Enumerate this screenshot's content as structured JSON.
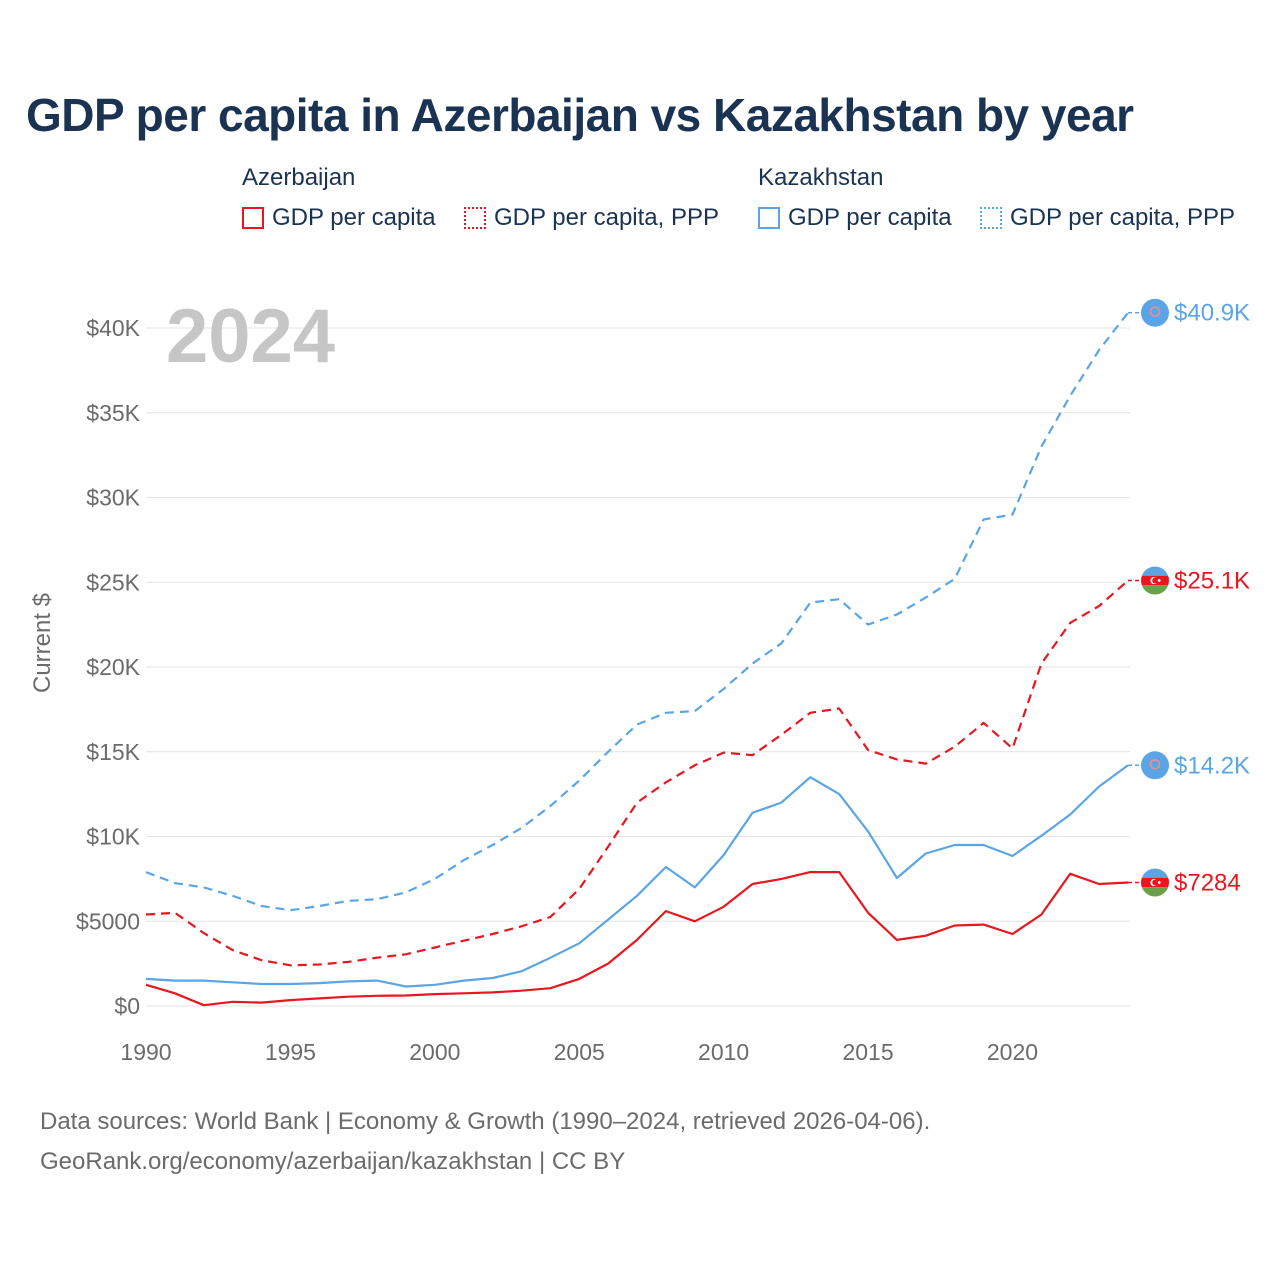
{
  "title": "GDP per capita in Azerbaijan vs Kazakhstan by year",
  "legend": {
    "groups": [
      {
        "title": "Azerbaijan",
        "items": [
          "GDP per capita",
          "GDP per capita, PPP"
        ]
      },
      {
        "title": "Kazakhstan",
        "items": [
          "GDP per capita",
          "GDP per capita, PPP"
        ]
      }
    ]
  },
  "year_watermark": "2024",
  "footer": {
    "line1": "Data sources: World Bank | Economy & Growth (1990–2024, retrieved 2026-04-06).",
    "line2": "GeoRank.org/economy/azerbaijan/kazakhstan | CC BY"
  },
  "colors": {
    "azerbaijan": "#e8171f",
    "kazakhstan": "#5ba5e6",
    "grid": "#e3e3e3",
    "axis_text": "#6b6b6b"
  },
  "chart_data": {
    "type": "line",
    "title": "GDP per capita in Azerbaijan vs Kazakhstan by year",
    "xlabel": "",
    "ylabel": "Current $",
    "xlim": [
      1990,
      2024
    ],
    "ylim": [
      0,
      42000
    ],
    "x_ticks": [
      1990,
      1995,
      2000,
      2005,
      2010,
      2015,
      2020
    ],
    "x_tick_labels": [
      "1990",
      "1995",
      "2000",
      "2005",
      "2010",
      "2015",
      "2020"
    ],
    "y_ticks": [
      0,
      5000,
      10000,
      15000,
      20000,
      25000,
      30000,
      35000,
      40000
    ],
    "y_tick_labels": [
      "$0",
      "$5000",
      "$10K",
      "$15K",
      "$20K",
      "$25K",
      "$30K",
      "$35K",
      "$40K"
    ],
    "x": [
      1990,
      1991,
      1992,
      1993,
      1994,
      1995,
      1996,
      1997,
      1998,
      1999,
      2000,
      2001,
      2002,
      2003,
      2004,
      2005,
      2006,
      2007,
      2008,
      2009,
      2010,
      2011,
      2012,
      2013,
      2014,
      2015,
      2016,
      2017,
      2018,
      2019,
      2020,
      2021,
      2022,
      2023,
      2024
    ],
    "series": [
      {
        "name": "Kazakhstan GDP per capita, PPP",
        "country": "kazakhstan",
        "style": "dashed",
        "end_label": "$40.9K",
        "values": [
          7900,
          7250,
          7000,
          6500,
          5900,
          5650,
          5900,
          6200,
          6300,
          6700,
          7500,
          8600,
          9500,
          10500,
          11800,
          13300,
          15000,
          16600,
          17300,
          17400,
          18700,
          20200,
          21400,
          23800,
          24000,
          22500,
          23100,
          24100,
          25200,
          28700,
          29000,
          33000,
          36000,
          38700,
          40900
        ]
      },
      {
        "name": "Azerbaijan GDP per capita, PPP",
        "country": "azerbaijan",
        "style": "dashed",
        "end_label": "$25.1K",
        "values": [
          5400,
          5500,
          4300,
          3300,
          2700,
          2400,
          2450,
          2600,
          2850,
          3050,
          3450,
          3850,
          4250,
          4700,
          5250,
          6900,
          9400,
          12000,
          13200,
          14200,
          14950,
          14800,
          16000,
          17300,
          17550,
          15100,
          14550,
          14300,
          15300,
          16700,
          15200,
          20200,
          22600,
          23600,
          25100
        ]
      },
      {
        "name": "Kazakhstan GDP per capita",
        "country": "kazakhstan",
        "style": "solid",
        "end_label": "$14.2K",
        "values": [
          1600,
          1500,
          1500,
          1400,
          1300,
          1300,
          1350,
          1450,
          1500,
          1150,
          1250,
          1500,
          1650,
          2050,
          2850,
          3700,
          5100,
          6500,
          8200,
          7000,
          8900,
          11400,
          12000,
          13500,
          12500,
          10300,
          7550,
          9000,
          9500,
          9500,
          8850,
          10050,
          11300,
          12950,
          14200
        ]
      },
      {
        "name": "Azerbaijan GDP per capita",
        "country": "azerbaijan",
        "style": "solid",
        "end_label": "$7284",
        "values": [
          1250,
          750,
          50,
          250,
          200,
          350,
          450,
          550,
          600,
          620,
          700,
          750,
          800,
          900,
          1050,
          1600,
          2500,
          3900,
          5600,
          5000,
          5850,
          7200,
          7500,
          7900,
          7900,
          5500,
          3900,
          4150,
          4750,
          4800,
          4250,
          5400,
          7800,
          7200,
          7284
        ]
      }
    ]
  }
}
